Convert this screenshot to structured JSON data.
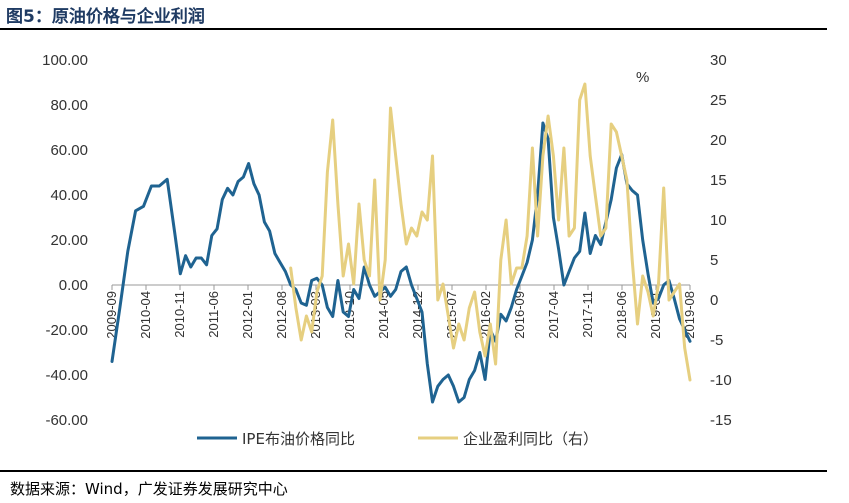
{
  "header": {
    "title": "图5：原油价格与企业利润"
  },
  "footer": {
    "source": "数据来源：Wind，广发证券发展研究中心"
  },
  "chart_data": {
    "type": "line",
    "title": "图5：原油价格与企业利润",
    "unit_label": "%",
    "x_ticks": [
      "2009-09",
      "2010-04",
      "2010-11",
      "2011-06",
      "2012-01",
      "2012-08",
      "2013-03",
      "2013-10",
      "2014-05",
      "2014-12",
      "2015-07",
      "2016-02",
      "2016-09",
      "2017-04",
      "2017-11",
      "2018-06",
      "2019-01",
      "2019-08"
    ],
    "y_left": {
      "min": -60,
      "max": 100,
      "step": 20,
      "ticks": [
        "100.00",
        "80.00",
        "60.00",
        "40.00",
        "20.00",
        "0.00",
        "-20.00",
        "-40.00",
        "-60.00"
      ]
    },
    "y_right": {
      "min": -15,
      "max": 30,
      "step": 5,
      "ticks": [
        "30",
        "25",
        "20",
        "15",
        "10",
        "5",
        "0",
        "-5",
        "-10",
        "-15"
      ]
    },
    "series": [
      {
        "name": "IPE布油价格同比",
        "axis": "left",
        "color": "#1f6391",
        "points": [
          [
            0,
            -34
          ],
          [
            1.5,
            -10
          ],
          [
            3,
            15
          ],
          [
            4.5,
            33
          ],
          [
            6,
            35
          ],
          [
            7.5,
            44
          ],
          [
            9,
            44
          ],
          [
            10.5,
            47
          ],
          [
            12,
            22
          ],
          [
            13,
            5
          ],
          [
            14,
            13
          ],
          [
            15,
            8
          ],
          [
            16,
            12
          ],
          [
            17,
            12
          ],
          [
            18,
            9
          ],
          [
            19,
            22
          ],
          [
            20,
            25
          ],
          [
            21,
            38
          ],
          [
            22,
            43
          ],
          [
            23,
            40
          ],
          [
            24,
            46
          ],
          [
            25,
            48
          ],
          [
            26,
            54
          ],
          [
            27,
            45
          ],
          [
            28,
            40
          ],
          [
            29,
            28
          ],
          [
            30,
            24
          ],
          [
            31,
            14
          ],
          [
            32,
            10
          ],
          [
            33,
            6
          ],
          [
            34,
            0
          ],
          [
            35,
            -2
          ],
          [
            36,
            -8
          ],
          [
            37,
            -9
          ],
          [
            38,
            2
          ],
          [
            39,
            3
          ],
          [
            40,
            0
          ],
          [
            41,
            -10
          ],
          [
            42,
            -14
          ],
          [
            43,
            2
          ],
          [
            44,
            -12
          ],
          [
            45,
            -14
          ],
          [
            46,
            -2
          ],
          [
            47,
            -6
          ],
          [
            48,
            8
          ],
          [
            49,
            0
          ],
          [
            50,
            -5
          ],
          [
            51,
            -3
          ],
          [
            52,
            -1
          ],
          [
            53,
            -5
          ],
          [
            54,
            -2
          ],
          [
            55,
            6
          ],
          [
            56,
            8
          ],
          [
            57,
            0
          ],
          [
            58,
            -6
          ],
          [
            59,
            -12
          ],
          [
            60,
            -35
          ],
          [
            61,
            -52
          ],
          [
            62,
            -45
          ],
          [
            63,
            -42
          ],
          [
            64,
            -40
          ],
          [
            65,
            -45
          ],
          [
            66,
            -52
          ],
          [
            67,
            -50
          ],
          [
            68,
            -42
          ],
          [
            69,
            -38
          ],
          [
            70,
            -30
          ],
          [
            71,
            -42
          ],
          [
            72,
            -20
          ],
          [
            73,
            -25
          ],
          [
            74,
            -13
          ],
          [
            75,
            -16
          ],
          [
            76,
            -10
          ],
          [
            77,
            -2
          ],
          [
            78,
            4
          ],
          [
            79,
            10
          ],
          [
            80,
            20
          ],
          [
            81,
            40
          ],
          [
            82,
            72
          ],
          [
            83,
            65
          ],
          [
            84,
            30
          ],
          [
            85,
            16
          ],
          [
            86,
            0
          ],
          [
            87,
            6
          ],
          [
            88,
            12
          ],
          [
            89,
            15
          ],
          [
            90,
            32
          ],
          [
            91,
            14
          ],
          [
            92,
            22
          ],
          [
            93,
            18
          ],
          [
            94,
            28
          ],
          [
            95,
            38
          ],
          [
            96,
            52
          ],
          [
            97,
            58
          ],
          [
            98,
            45
          ],
          [
            99,
            42
          ],
          [
            100,
            40
          ],
          [
            101,
            20
          ],
          [
            102,
            5
          ],
          [
            103,
            -8
          ],
          [
            104,
            -6
          ],
          [
            105,
            0
          ],
          [
            106,
            2
          ],
          [
            107,
            -6
          ],
          [
            108,
            -15
          ],
          [
            109,
            -20
          ],
          [
            110,
            -25
          ]
        ]
      },
      {
        "name": "企业盈利同比（右）",
        "axis": "right",
        "color": "#e6cf80",
        "points": [
          [
            34,
            4
          ],
          [
            35,
            -1
          ],
          [
            36,
            -5
          ],
          [
            37,
            -2
          ],
          [
            38,
            -4
          ],
          [
            39,
            1
          ],
          [
            40,
            3
          ],
          [
            41,
            16
          ],
          [
            42,
            22.5
          ],
          [
            43,
            12
          ],
          [
            44,
            3
          ],
          [
            45,
            7
          ],
          [
            46,
            2
          ],
          [
            47,
            12
          ],
          [
            48,
            5
          ],
          [
            49,
            3
          ],
          [
            50,
            15
          ],
          [
            51,
            0
          ],
          [
            52,
            5
          ],
          [
            53,
            24
          ],
          [
            54,
            18
          ],
          [
            55,
            12
          ],
          [
            56,
            7
          ],
          [
            57,
            9
          ],
          [
            58,
            8
          ],
          [
            59,
            11
          ],
          [
            60,
            10
          ],
          [
            61,
            18
          ],
          [
            62,
            0
          ],
          [
            63,
            2
          ],
          [
            64,
            -2
          ],
          [
            65,
            -6
          ],
          [
            66,
            -3
          ],
          [
            67,
            -5
          ],
          [
            68,
            -1
          ],
          [
            69,
            1
          ],
          [
            70,
            -4
          ],
          [
            71,
            -7
          ],
          [
            72,
            -3
          ],
          [
            73,
            -8
          ],
          [
            74,
            5
          ],
          [
            75,
            10
          ],
          [
            76,
            2
          ],
          [
            77,
            4
          ],
          [
            78,
            4
          ],
          [
            79,
            8
          ],
          [
            80,
            19
          ],
          [
            81,
            8
          ],
          [
            82,
            18
          ],
          [
            83,
            23
          ],
          [
            84,
            18
          ],
          [
            85,
            10
          ],
          [
            86,
            19
          ],
          [
            87,
            8
          ],
          [
            88,
            9
          ],
          [
            89,
            25
          ],
          [
            90,
            27
          ],
          [
            91,
            18
          ],
          [
            92,
            13
          ],
          [
            93,
            8
          ],
          [
            94,
            9
          ],
          [
            95,
            22
          ],
          [
            96,
            21
          ],
          [
            97,
            18
          ],
          [
            98,
            15
          ],
          [
            99,
            5
          ],
          [
            100,
            -3
          ],
          [
            101,
            3
          ],
          [
            102,
            1
          ],
          [
            103,
            -2
          ],
          [
            104,
            2
          ],
          [
            105,
            14
          ],
          [
            106,
            0
          ],
          [
            107,
            1
          ],
          [
            108,
            2
          ],
          [
            109,
            -6
          ],
          [
            110,
            -10
          ]
        ]
      }
    ],
    "legend": [
      "IPE布油价格同比",
      "企业盈利同比（右）"
    ]
  }
}
